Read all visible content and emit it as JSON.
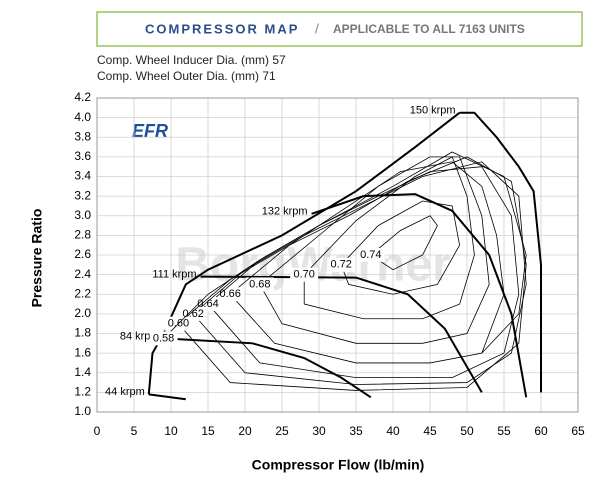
{
  "chart_data": {
    "type": "line",
    "title": "COMPRESSOR MAP",
    "separator": "/",
    "subtitle": "APPLICABLE TO ALL 7163 UNITS",
    "notes": [
      "Comp. Wheel Inducer Dia. (mm) 57",
      "Comp. Wheel Outer Dia. (mm) 71"
    ],
    "logo": "EFR",
    "watermark": "BorgWarner",
    "x_label": "Compressor Flow (lb/min)",
    "y_label": "Pressure Ratio",
    "xlim": [
      0,
      65
    ],
    "ylim": [
      1.0,
      4.2
    ],
    "xticks": [
      0,
      5,
      10,
      15,
      20,
      25,
      30,
      35,
      40,
      45,
      50,
      55,
      60,
      65
    ],
    "yticks": [
      {
        "value": 1.0,
        "label": "1.0"
      },
      1.2,
      1.4,
      1.6,
      1.8,
      {
        "value": 2.0,
        "label": "2.0"
      },
      2.2,
      2.4,
      2.6,
      2.8,
      {
        "value": 3.0,
        "label": "3.0"
      },
      3.2,
      3.4,
      3.6,
      3.8,
      {
        "value": 4.0,
        "label": "4.0"
      },
      4.2
    ],
    "grid": true,
    "series": [
      {
        "color": "#000000",
        "line_width": 2,
        "x": [
          7,
          7.5,
          9,
          12,
          15,
          25,
          35,
          43,
          49
        ],
        "values": [
          1.18,
          1.6,
          1.8,
          2.3,
          2.45,
          2.8,
          3.25,
          3.7,
          4.05
        ]
      },
      {
        "name": "44 krpm",
        "color": "#000000",
        "line_width": 2,
        "x": [
          7,
          12
        ],
        "values": [
          1.18,
          1.13
        ]
      },
      {
        "name": "84 krpm",
        "color": "#000000",
        "line_width": 2,
        "x": [
          9,
          21,
          28,
          33,
          37
        ],
        "values": [
          1.75,
          1.7,
          1.55,
          1.35,
          1.15
        ]
      },
      {
        "name": "111 krpm",
        "color": "#000000",
        "line_width": 2,
        "x": [
          14,
          35,
          42,
          47,
          52
        ],
        "values": [
          2.38,
          2.37,
          2.2,
          1.85,
          1.2
        ]
      },
      {
        "name": "132 krpm",
        "color": "#000000",
        "line_width": 2,
        "x": [
          29,
          36,
          43,
          48,
          53,
          56,
          58
        ],
        "values": [
          3.02,
          3.2,
          3.22,
          3.05,
          2.6,
          2.0,
          1.15
        ]
      },
      {
        "name": "150 krpm",
        "color": "#000000",
        "line_width": 2,
        "x": [
          49,
          51,
          54,
          57,
          59,
          60,
          60
        ],
        "values": [
          4.05,
          4.05,
          3.8,
          3.5,
          3.25,
          2.5,
          1.2
        ]
      },
      {
        "name": "0.74",
        "color": "#000000",
        "line_width": 0.8,
        "x": [
          37,
          41,
          45,
          46,
          44,
          40,
          37
        ],
        "values": [
          2.6,
          2.85,
          3.0,
          2.9,
          2.6,
          2.45,
          2.6
        ]
      },
      {
        "name": "0.72",
        "color": "#000000",
        "line_width": 0.8,
        "x": [
          33,
          38,
          44,
          48,
          49,
          46,
          40,
          34,
          33
        ],
        "values": [
          2.5,
          2.9,
          3.15,
          3.1,
          2.7,
          2.3,
          2.2,
          2.3,
          2.5
        ]
      },
      {
        "name": "0.70",
        "color": "#000000",
        "line_width": 0.8,
        "x": [
          28,
          35,
          43,
          48,
          50,
          51,
          49,
          44,
          36,
          28,
          28
        ],
        "values": [
          2.4,
          2.95,
          3.4,
          3.6,
          3.2,
          2.6,
          2.1,
          1.95,
          1.95,
          2.1,
          2.4
        ]
      },
      {
        "name": "0.68",
        "color": "#000000",
        "line_width": 0.8,
        "x": [
          22,
          30,
          38,
          45,
          49,
          52,
          53,
          50,
          44,
          35,
          25,
          22
        ],
        "values": [
          2.3,
          2.8,
          3.3,
          3.6,
          3.6,
          3.0,
          2.3,
          1.8,
          1.7,
          1.7,
          1.9,
          2.3
        ]
      },
      {
        "name": "0.66",
        "color": "#000000",
        "line_width": 0.8,
        "x": [
          18,
          26,
          34,
          41,
          48,
          52,
          54,
          55,
          52,
          45,
          35,
          24,
          18
        ],
        "values": [
          2.2,
          2.7,
          3.1,
          3.45,
          3.55,
          3.3,
          2.8,
          2.2,
          1.6,
          1.5,
          1.5,
          1.7,
          2.2
        ]
      },
      {
        "name": "0.64",
        "color": "#000000",
        "line_width": 0.8,
        "x": [
          15,
          22,
          30,
          38,
          45,
          52,
          56,
          57,
          55,
          48,
          35,
          22,
          15
        ],
        "values": [
          2.1,
          2.55,
          2.9,
          3.2,
          3.45,
          3.5,
          3.0,
          2.2,
          1.6,
          1.35,
          1.35,
          1.5,
          2.1
        ]
      },
      {
        "name": "0.62",
        "color": "#000000",
        "line_width": 0.8,
        "x": [
          13,
          20,
          28,
          36,
          44,
          52,
          57,
          58,
          56,
          50,
          35,
          20,
          13
        ],
        "values": [
          2.0,
          2.45,
          2.8,
          3.1,
          3.4,
          3.55,
          3.2,
          2.3,
          1.6,
          1.3,
          1.28,
          1.4,
          2.0
        ]
      },
      {
        "name": "0.60",
        "color": "#000000",
        "line_width": 0.8,
        "x": [
          11,
          18,
          26,
          34,
          42,
          50,
          56,
          58,
          57,
          50,
          35,
          18,
          11
        ],
        "values": [
          1.9,
          2.35,
          2.7,
          3.0,
          3.35,
          3.6,
          3.35,
          2.5,
          1.7,
          1.25,
          1.22,
          1.3,
          1.9
        ]
      },
      {
        "name": "0.58",
        "color": "#000000",
        "line_width": 0.8,
        "x": [
          9,
          15,
          22,
          30,
          40,
          48,
          55,
          58,
          57,
          52
        ],
        "values": [
          1.75,
          2.2,
          2.55,
          2.9,
          3.3,
          3.65,
          3.4,
          2.6,
          2.0,
          1.6
        ]
      }
    ]
  }
}
